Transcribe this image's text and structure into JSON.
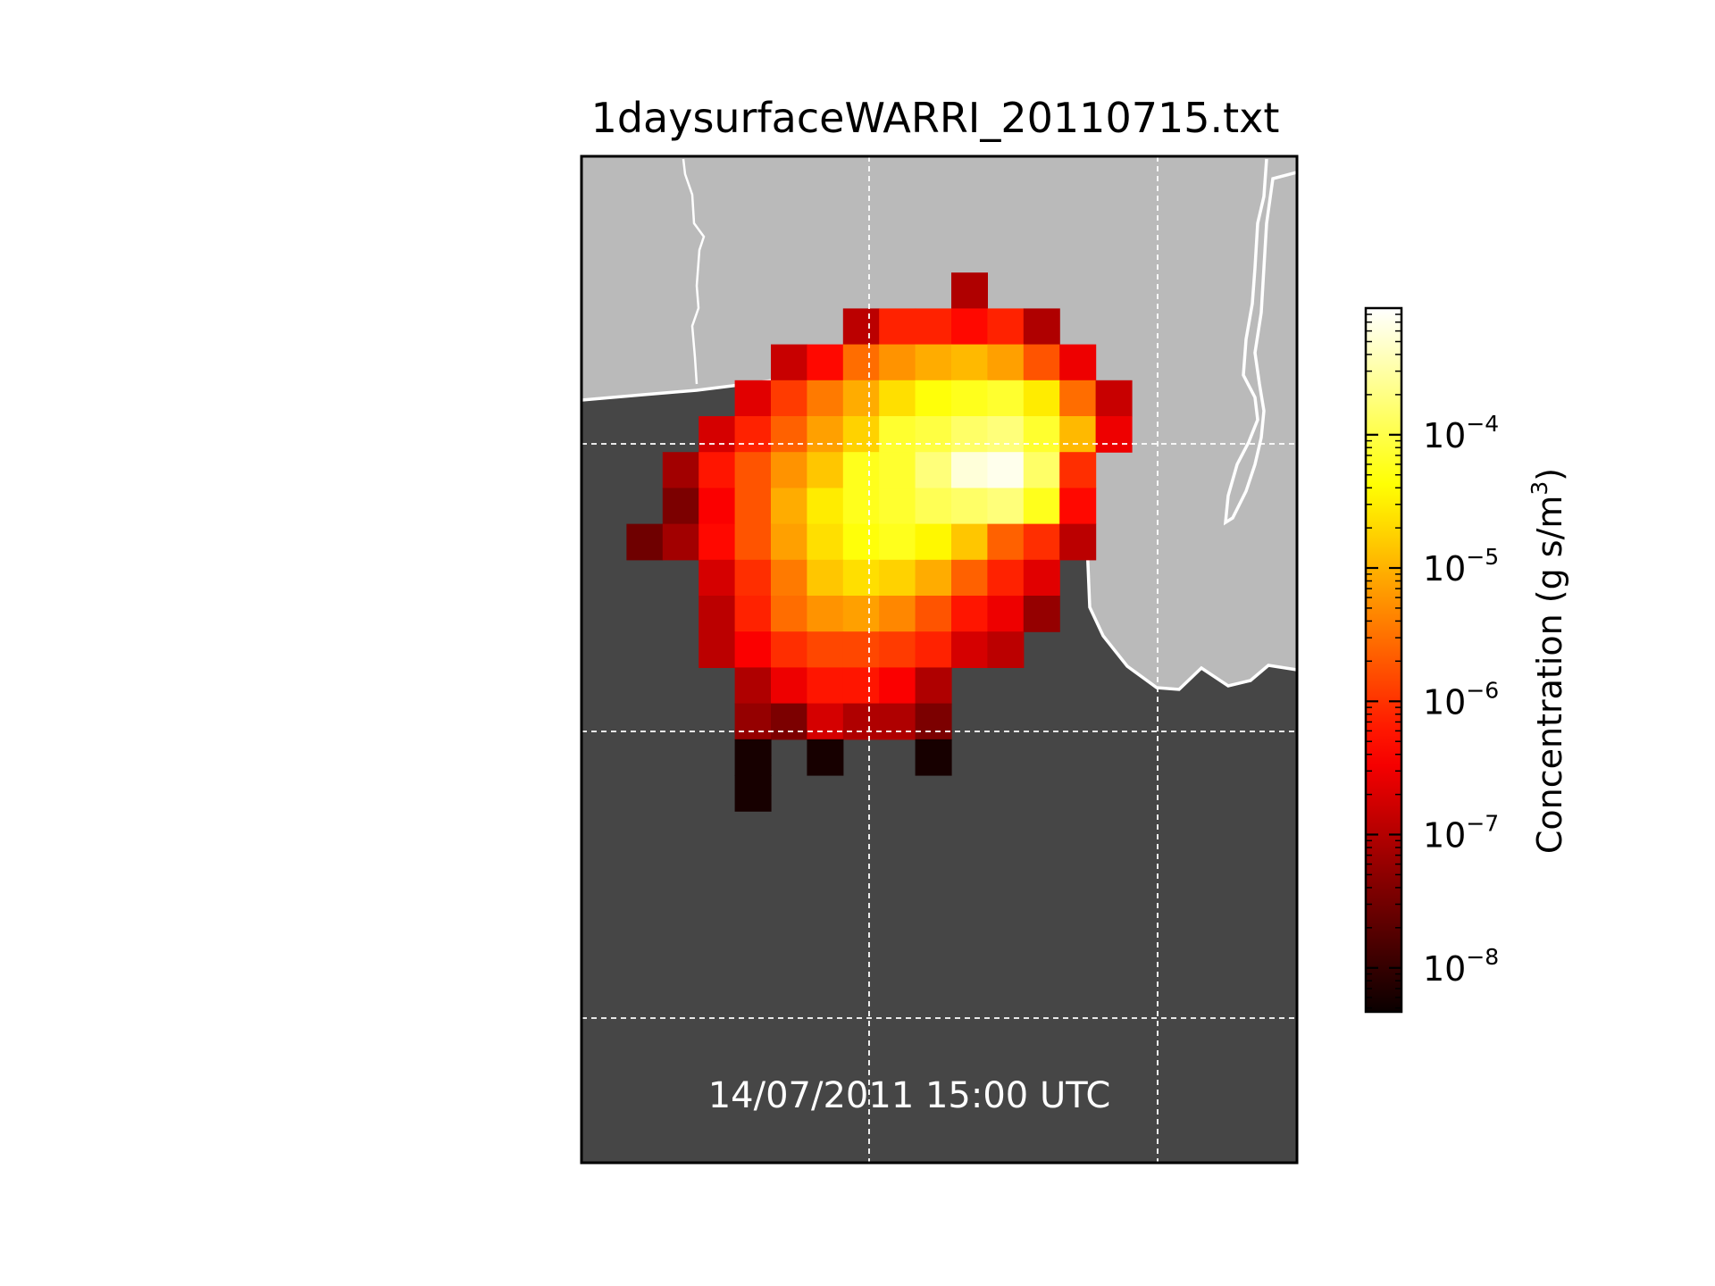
{
  "title": "1daysurfaceWARRI_20110715.txt",
  "timestamp": "14/07/2011 15:00 UTC",
  "colors": {
    "ocean": "#464646",
    "land": "#bababa",
    "coastline": "#ffffff",
    "grid": "#ffffff",
    "frame": "#000000"
  },
  "colorbar": {
    "label_main": "Concentration (g s/m",
    "label_sup": "3",
    "label_end": ")",
    "colormap": "hot",
    "scale": "log",
    "ticks": [
      {
        "base": "10",
        "exp": "−8"
      },
      {
        "base": "10",
        "exp": "−7"
      },
      {
        "base": "10",
        "exp": "−6"
      },
      {
        "base": "10",
        "exp": "−5"
      },
      {
        "base": "10",
        "exp": "−4"
      }
    ]
  },
  "chart_data": {
    "type": "heatmap",
    "colormap": "hot",
    "scale": "log",
    "vmin_exp": -8.4,
    "vmax_exp": -3.1,
    "grid_lines": true,
    "legend": "right",
    "cells_note_units": "log10 concentration (g s/m3)",
    "cells": [
      [
        10,
        1,
        -7.1
      ],
      [
        7,
        2,
        -7.0
      ],
      [
        8,
        2,
        -6.2
      ],
      [
        9,
        2,
        -6.2
      ],
      [
        10,
        2,
        -6.4
      ],
      [
        11,
        2,
        -6.2
      ],
      [
        12,
        2,
        -7.1
      ],
      [
        5,
        3,
        -6.9
      ],
      [
        6,
        3,
        -6.4
      ],
      [
        7,
        3,
        -5.6
      ],
      [
        8,
        3,
        -5.3
      ],
      [
        9,
        3,
        -5.1
      ],
      [
        10,
        3,
        -5.0
      ],
      [
        11,
        3,
        -5.2
      ],
      [
        12,
        3,
        -5.8
      ],
      [
        13,
        3,
        -6.6
      ],
      [
        4,
        4,
        -6.7
      ],
      [
        5,
        4,
        -6.0
      ],
      [
        6,
        4,
        -5.5
      ],
      [
        7,
        4,
        -5.1
      ],
      [
        8,
        4,
        -4.7
      ],
      [
        9,
        4,
        -4.4
      ],
      [
        10,
        4,
        -4.3
      ],
      [
        11,
        4,
        -4.2
      ],
      [
        12,
        4,
        -4.6
      ],
      [
        13,
        4,
        -5.6
      ],
      [
        14,
        4,
        -6.9
      ],
      [
        3,
        5,
        -6.8
      ],
      [
        4,
        5,
        -6.2
      ],
      [
        5,
        5,
        -5.7
      ],
      [
        6,
        5,
        -5.2
      ],
      [
        7,
        5,
        -4.8
      ],
      [
        8,
        5,
        -4.2
      ],
      [
        9,
        5,
        -4.1
      ],
      [
        10,
        5,
        -3.9
      ],
      [
        11,
        5,
        -3.8
      ],
      [
        12,
        5,
        -4.2
      ],
      [
        13,
        5,
        -5.0
      ],
      [
        14,
        5,
        -6.6
      ],
      [
        2,
        6,
        -7.2
      ],
      [
        3,
        6,
        -6.3
      ],
      [
        4,
        6,
        -5.8
      ],
      [
        5,
        6,
        -5.3
      ],
      [
        6,
        6,
        -4.9
      ],
      [
        7,
        6,
        -4.3
      ],
      [
        8,
        6,
        -4.2
      ],
      [
        9,
        6,
        -3.8
      ],
      [
        10,
        6,
        -3.3
      ],
      [
        11,
        6,
        -3.2
      ],
      [
        12,
        6,
        -3.9
      ],
      [
        13,
        6,
        -6.1
      ],
      [
        2,
        7,
        -7.5
      ],
      [
        3,
        7,
        -6.5
      ],
      [
        4,
        7,
        -5.8
      ],
      [
        5,
        7,
        -5.1
      ],
      [
        6,
        7,
        -4.6
      ],
      [
        7,
        7,
        -4.3
      ],
      [
        8,
        7,
        -4.2
      ],
      [
        9,
        7,
        -4.0
      ],
      [
        10,
        7,
        -3.9
      ],
      [
        11,
        7,
        -3.8
      ],
      [
        12,
        7,
        -4.3
      ],
      [
        13,
        7,
        -6.4
      ],
      [
        1,
        8,
        -7.6
      ],
      [
        2,
        8,
        -7.2
      ],
      [
        3,
        8,
        -6.4
      ],
      [
        4,
        8,
        -5.8
      ],
      [
        5,
        8,
        -5.2
      ],
      [
        6,
        8,
        -4.7
      ],
      [
        7,
        8,
        -4.4
      ],
      [
        8,
        8,
        -4.3
      ],
      [
        9,
        8,
        -4.5
      ],
      [
        10,
        8,
        -4.9
      ],
      [
        11,
        8,
        -5.7
      ],
      [
        12,
        8,
        -6.1
      ],
      [
        13,
        8,
        -7.0
      ],
      [
        3,
        9,
        -6.8
      ],
      [
        4,
        9,
        -6.1
      ],
      [
        5,
        9,
        -5.5
      ],
      [
        6,
        9,
        -4.9
      ],
      [
        7,
        9,
        -4.7
      ],
      [
        8,
        9,
        -4.8
      ],
      [
        9,
        9,
        -5.1
      ],
      [
        10,
        9,
        -5.7
      ],
      [
        11,
        9,
        -6.2
      ],
      [
        12,
        9,
        -6.7
      ],
      [
        3,
        10,
        -7.0
      ],
      [
        4,
        10,
        -6.2
      ],
      [
        5,
        10,
        -5.6
      ],
      [
        6,
        10,
        -5.3
      ],
      [
        7,
        10,
        -5.2
      ],
      [
        8,
        10,
        -5.4
      ],
      [
        9,
        10,
        -5.8
      ],
      [
        10,
        10,
        -6.3
      ],
      [
        11,
        10,
        -6.6
      ],
      [
        12,
        10,
        -7.3
      ],
      [
        3,
        11,
        -7.0
      ],
      [
        4,
        11,
        -6.5
      ],
      [
        5,
        11,
        -6.1
      ],
      [
        6,
        11,
        -5.9
      ],
      [
        7,
        11,
        -5.9
      ],
      [
        8,
        11,
        -6.0
      ],
      [
        9,
        11,
        -6.2
      ],
      [
        10,
        11,
        -6.8
      ],
      [
        11,
        11,
        -7.0
      ],
      [
        4,
        12,
        -7.1
      ],
      [
        5,
        12,
        -6.6
      ],
      [
        6,
        12,
        -6.3
      ],
      [
        7,
        12,
        -6.3
      ],
      [
        8,
        12,
        -6.5
      ],
      [
        9,
        12,
        -7.1
      ],
      [
        4,
        13,
        -7.3
      ],
      [
        5,
        13,
        -7.5
      ],
      [
        6,
        13,
        -6.8
      ],
      [
        7,
        13,
        -7.1
      ],
      [
        8,
        13,
        -7.1
      ],
      [
        9,
        13,
        -7.5
      ],
      [
        4,
        14,
        -8.3
      ],
      [
        6,
        14,
        -8.3
      ],
      [
        9,
        14,
        -8.3
      ],
      [
        4,
        15,
        -8.3
      ]
    ]
  }
}
